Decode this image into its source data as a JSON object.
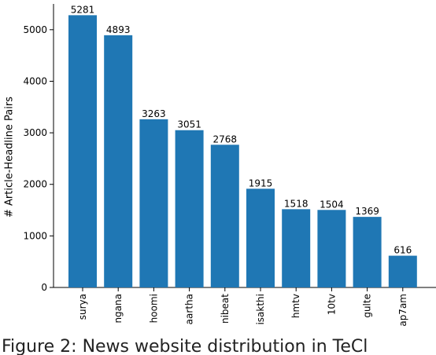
{
  "chart_data": {
    "type": "bar",
    "y_label": "# Article-Headline Pairs",
    "categories": [
      "surya",
      "ngana",
      "hoomi",
      "aartha",
      "nibeat",
      "isakthi",
      "hmtv",
      "10tv",
      "gulte",
      "ap7am"
    ],
    "values": [
      5281,
      4893,
      3263,
      3051,
      2768,
      1915,
      1518,
      1504,
      1369,
      616
    ],
    "color": "#1f77b4",
    "ylim": [
      0,
      5500
    ],
    "yticks": [
      0,
      1000,
      2000,
      3000,
      4000,
      5000
    ],
    "grid": false
  },
  "caption": "Figure 2: News website distribution in TeCl"
}
